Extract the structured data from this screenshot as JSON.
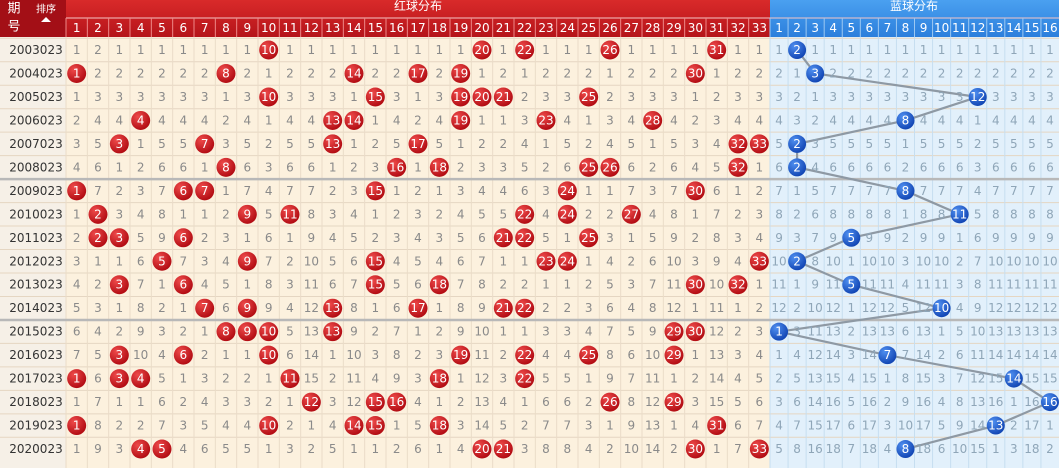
{
  "header": {
    "issue_label_1": "期",
    "issue_label_2": "号",
    "sort_label": "排序",
    "red_title": "红球分布",
    "blue_title": "蓝球分布",
    "red_numbers": [
      1,
      2,
      3,
      4,
      5,
      6,
      7,
      8,
      9,
      10,
      11,
      12,
      13,
      14,
      15,
      16,
      17,
      18,
      19,
      20,
      21,
      22,
      23,
      24,
      25,
      26,
      27,
      28,
      29,
      30,
      31,
      32,
      33
    ],
    "blue_numbers": [
      1,
      2,
      3,
      4,
      5,
      6,
      7,
      8,
      9,
      10,
      11,
      12,
      13,
      14,
      15,
      16
    ]
  },
  "rows": [
    {
      "issue": "2003023",
      "red": [
        1,
        2,
        1,
        1,
        1,
        1,
        1,
        1,
        1,
        10,
        1,
        1,
        1,
        1,
        1,
        1,
        1,
        1,
        1,
        20,
        1,
        22,
        1,
        1,
        1,
        26,
        1,
        1,
        1,
        1,
        31,
        1,
        1
      ],
      "red_drawn": [
        10,
        20,
        22,
        26,
        31
      ],
      "blue": [
        1,
        2,
        1,
        1,
        1,
        1,
        1,
        1,
        1,
        1,
        1,
        1,
        1,
        1,
        1,
        1
      ],
      "blue_drawn": 2
    },
    {
      "issue": "2004023",
      "red": [
        1,
        2,
        2,
        2,
        2,
        2,
        2,
        8,
        2,
        1,
        2,
        2,
        2,
        14,
        2,
        2,
        17,
        2,
        19,
        1,
        2,
        1,
        2,
        2,
        2,
        1,
        2,
        2,
        2,
        30,
        1,
        2,
        2
      ],
      "red_drawn": [
        1,
        8,
        14,
        17,
        19,
        30
      ],
      "blue": [
        2,
        1,
        3,
        2,
        2,
        2,
        2,
        2,
        2,
        2,
        2,
        2,
        2,
        2,
        2,
        2
      ],
      "blue_drawn": 3
    },
    {
      "issue": "2005023",
      "red": [
        1,
        3,
        3,
        3,
        3,
        3,
        3,
        1,
        3,
        10,
        3,
        3,
        3,
        1,
        15,
        3,
        1,
        3,
        19,
        20,
        21,
        2,
        3,
        3,
        25,
        2,
        3,
        3,
        3,
        1,
        2,
        3,
        3
      ],
      "red_drawn": [
        10,
        15,
        19,
        20,
        21,
        25
      ],
      "blue": [
        3,
        2,
        1,
        3,
        3,
        3,
        3,
        3,
        3,
        3,
        3,
        12,
        3,
        3,
        3,
        3
      ],
      "blue_drawn": 12
    },
    {
      "issue": "2006023",
      "red": [
        2,
        4,
        4,
        4,
        4,
        4,
        4,
        2,
        4,
        1,
        4,
        4,
        13,
        14,
        1,
        4,
        2,
        4,
        19,
        1,
        1,
        3,
        23,
        4,
        1,
        3,
        4,
        28,
        4,
        2,
        3,
        4,
        4
      ],
      "red_drawn": [
        4,
        13,
        14,
        19,
        23,
        28
      ],
      "blue": [
        4,
        3,
        2,
        4,
        4,
        4,
        4,
        8,
        4,
        4,
        4,
        1,
        4,
        4,
        4,
        4
      ],
      "blue_drawn": 8
    },
    {
      "issue": "2007023",
      "red": [
        3,
        5,
        3,
        1,
        5,
        5,
        7,
        3,
        5,
        2,
        5,
        5,
        13,
        1,
        2,
        5,
        17,
        5,
        1,
        2,
        2,
        4,
        1,
        5,
        2,
        4,
        5,
        1,
        5,
        3,
        4,
        32,
        33
      ],
      "red_drawn": [
        3,
        7,
        13,
        17,
        32,
        33
      ],
      "blue": [
        5,
        2,
        3,
        5,
        5,
        5,
        5,
        1,
        5,
        5,
        5,
        2,
        5,
        5,
        5,
        5
      ],
      "blue_drawn": 2
    },
    {
      "issue": "2008023",
      "red": [
        4,
        6,
        1,
        2,
        6,
        6,
        1,
        8,
        6,
        3,
        6,
        6,
        1,
        2,
        3,
        16,
        1,
        18,
        2,
        3,
        3,
        5,
        2,
        6,
        25,
        26,
        6,
        2,
        6,
        4,
        5,
        32,
        1
      ],
      "red_drawn": [
        8,
        16,
        18,
        25,
        26,
        32
      ],
      "blue": [
        6,
        2,
        4,
        6,
        6,
        6,
        6,
        2,
        6,
        6,
        6,
        3,
        6,
        6,
        6,
        6
      ],
      "blue_drawn": 2
    },
    {
      "issue": "2009023",
      "red": [
        1,
        7,
        2,
        3,
        7,
        6,
        7,
        1,
        7,
        4,
        7,
        7,
        2,
        3,
        15,
        1,
        2,
        1,
        3,
        4,
        4,
        6,
        3,
        24,
        1,
        1,
        7,
        3,
        7,
        30,
        6,
        1,
        2
      ],
      "red_drawn": [
        1,
        6,
        7,
        15,
        24,
        30
      ],
      "blue": [
        7,
        1,
        5,
        7,
        7,
        7,
        7,
        8,
        7,
        7,
        7,
        4,
        7,
        7,
        7,
        7
      ],
      "blue_drawn": 8
    },
    {
      "issue": "2010023",
      "red": [
        1,
        2,
        3,
        4,
        8,
        1,
        1,
        2,
        9,
        5,
        11,
        8,
        3,
        4,
        1,
        2,
        3,
        2,
        4,
        5,
        5,
        22,
        4,
        24,
        2,
        2,
        27,
        4,
        8,
        1,
        7,
        2,
        3
      ],
      "red_drawn": [
        2,
        9,
        11,
        22,
        24,
        27
      ],
      "blue": [
        8,
        2,
        6,
        8,
        8,
        8,
        8,
        1,
        8,
        8,
        11,
        5,
        8,
        8,
        8,
        8
      ],
      "blue_drawn": 11
    },
    {
      "issue": "2011023",
      "red": [
        2,
        2,
        3,
        5,
        9,
        6,
        2,
        3,
        1,
        6,
        1,
        9,
        4,
        5,
        2,
        3,
        4,
        3,
        5,
        6,
        21,
        22,
        5,
        1,
        25,
        3,
        1,
        5,
        9,
        2,
        8,
        3,
        4
      ],
      "red_drawn": [
        2,
        3,
        6,
        21,
        22,
        25
      ],
      "blue": [
        9,
        3,
        7,
        9,
        5,
        9,
        9,
        2,
        9,
        9,
        1,
        6,
        9,
        9,
        9,
        9
      ],
      "blue_drawn": 5
    },
    {
      "issue": "2012023",
      "red": [
        3,
        1,
        1,
        6,
        5,
        7,
        3,
        4,
        9,
        7,
        2,
        10,
        5,
        6,
        15,
        4,
        5,
        4,
        6,
        7,
        1,
        1,
        23,
        24,
        1,
        4,
        2,
        6,
        10,
        3,
        9,
        4,
        33
      ],
      "red_drawn": [
        5,
        9,
        15,
        23,
        24,
        33
      ],
      "blue": [
        10,
        2,
        8,
        10,
        1,
        10,
        10,
        3,
        10,
        10,
        2,
        7,
        10,
        10,
        10,
        10
      ],
      "blue_drawn": 2
    },
    {
      "issue": "2013023",
      "red": [
        4,
        2,
        3,
        7,
        1,
        6,
        4,
        5,
        1,
        8,
        3,
        11,
        6,
        7,
        15,
        5,
        6,
        18,
        7,
        8,
        2,
        2,
        1,
        1,
        2,
        5,
        3,
        7,
        11,
        30,
        10,
        32,
        1
      ],
      "red_drawn": [
        3,
        6,
        15,
        18,
        30,
        32
      ],
      "blue": [
        11,
        1,
        9,
        11,
        5,
        11,
        11,
        4,
        11,
        11,
        3,
        8,
        11,
        11,
        11,
        11
      ],
      "blue_drawn": 5
    },
    {
      "issue": "2014023",
      "red": [
        5,
        3,
        1,
        8,
        2,
        1,
        7,
        6,
        9,
        9,
        4,
        12,
        13,
        8,
        1,
        6,
        17,
        1,
        8,
        9,
        21,
        22,
        2,
        2,
        3,
        6,
        4,
        8,
        12,
        1,
        11,
        1,
        2
      ],
      "red_drawn": [
        7,
        9,
        13,
        17,
        21,
        22
      ],
      "blue": [
        12,
        2,
        10,
        12,
        1,
        12,
        12,
        5,
        12,
        10,
        4,
        9,
        12,
        12,
        12,
        12
      ],
      "blue_drawn": 10
    },
    {
      "issue": "2015023",
      "red": [
        6,
        4,
        2,
        9,
        3,
        2,
        1,
        8,
        9,
        10,
        5,
        13,
        13,
        9,
        2,
        7,
        1,
        2,
        9,
        10,
        1,
        1,
        3,
        3,
        4,
        7,
        5,
        9,
        29,
        30,
        12,
        2,
        3
      ],
      "red_drawn": [
        8,
        9,
        10,
        13,
        29,
        30
      ],
      "blue": [
        1,
        3,
        11,
        13,
        2,
        13,
        13,
        6,
        13,
        1,
        5,
        10,
        13,
        13,
        13,
        13
      ],
      "blue_drawn": 1
    },
    {
      "issue": "2016023",
      "red": [
        7,
        5,
        3,
        10,
        4,
        6,
        2,
        1,
        1,
        10,
        6,
        14,
        1,
        10,
        3,
        8,
        2,
        3,
        19,
        11,
        2,
        22,
        4,
        4,
        25,
        8,
        6,
        10,
        29,
        1,
        13,
        3,
        4
      ],
      "red_drawn": [
        3,
        6,
        10,
        19,
        22,
        25,
        29
      ],
      "blue": [
        1,
        4,
        12,
        14,
        3,
        14,
        7,
        7,
        14,
        2,
        6,
        11,
        14,
        14,
        14,
        14
      ],
      "blue_drawn": 7
    },
    {
      "issue": "2017023",
      "red": [
        1,
        6,
        3,
        4,
        5,
        1,
        3,
        2,
        2,
        1,
        11,
        15,
        2,
        11,
        4,
        9,
        3,
        18,
        1,
        12,
        3,
        22,
        5,
        5,
        1,
        9,
        7,
        11,
        1,
        2,
        14,
        4,
        5
      ],
      "red_drawn": [
        1,
        3,
        4,
        11,
        18,
        22
      ],
      "blue": [
        2,
        5,
        13,
        15,
        4,
        15,
        1,
        8,
        15,
        3,
        7,
        12,
        15,
        14,
        15,
        15
      ],
      "blue_drawn": 14
    },
    {
      "issue": "2018023",
      "red": [
        1,
        7,
        1,
        1,
        6,
        2,
        4,
        3,
        3,
        2,
        1,
        12,
        3,
        12,
        15,
        16,
        4,
        1,
        2,
        13,
        4,
        1,
        6,
        6,
        2,
        26,
        8,
        12,
        29,
        3,
        15,
        5,
        6
      ],
      "red_drawn": [
        12,
        15,
        16,
        26,
        29
      ],
      "blue": [
        3,
        6,
        14,
        16,
        5,
        16,
        2,
        9,
        16,
        4,
        8,
        13,
        16,
        1,
        16,
        16
      ],
      "blue_drawn": 16
    },
    {
      "issue": "2019023",
      "red": [
        1,
        8,
        2,
        2,
        7,
        3,
        5,
        4,
        4,
        10,
        2,
        1,
        4,
        14,
        15,
        1,
        5,
        18,
        3,
        14,
        5,
        2,
        7,
        7,
        3,
        1,
        9,
        13,
        1,
        4,
        31,
        6,
        7
      ],
      "red_drawn": [
        1,
        10,
        14,
        15,
        18,
        31
      ],
      "blue": [
        4,
        7,
        15,
        17,
        6,
        17,
        3,
        10,
        17,
        5,
        9,
        14,
        13,
        2,
        17,
        1
      ],
      "blue_drawn": 13
    },
    {
      "issue": "2020023",
      "red": [
        1,
        9,
        3,
        4,
        5,
        4,
        6,
        5,
        5,
        1,
        3,
        2,
        5,
        1,
        1,
        2,
        6,
        1,
        4,
        20,
        21,
        3,
        8,
        8,
        4,
        2,
        10,
        14,
        2,
        30,
        1,
        7,
        33
      ],
      "red_drawn": [
        4,
        5,
        20,
        21,
        30,
        33
      ],
      "blue": [
        5,
        8,
        16,
        18,
        7,
        18,
        4,
        8,
        18,
        6,
        10,
        15,
        1,
        3,
        18,
        2
      ],
      "blue_drawn": 8
    }
  ]
}
